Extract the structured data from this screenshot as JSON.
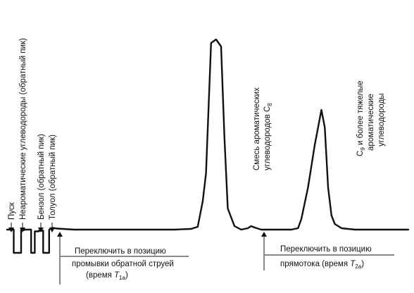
{
  "chart_data": {
    "type": "line",
    "x_label": "",
    "y_label": "",
    "grid": false,
    "legend": "none",
    "series": [
      {
        "points": [
          [
            0,
            0
          ],
          [
            2,
            0
          ],
          [
            2,
            -33
          ],
          [
            4.2,
            -33
          ],
          [
            4.2,
            -0.5
          ],
          [
            5.2,
            -0.5
          ],
          [
            5.2,
            0
          ],
          [
            7.2,
            0
          ],
          [
            7.2,
            -33
          ],
          [
            8.3,
            -33
          ],
          [
            8.3,
            -2.5
          ],
          [
            9.5,
            -2.5
          ],
          [
            9.5,
            -1.5
          ],
          [
            10.8,
            -1.5
          ],
          [
            10.8,
            -33
          ],
          [
            12.6,
            -33
          ],
          [
            12.6,
            0
          ],
          [
            13.5,
            2.5
          ],
          [
            15,
            1.5
          ],
          [
            20,
            0
          ],
          [
            50,
            0
          ],
          [
            55,
            1
          ],
          [
            57,
            4
          ],
          [
            58.5,
            40
          ],
          [
            59.5,
            80
          ],
          [
            61,
            265
          ],
          [
            62.5,
            270
          ],
          [
            64,
            260
          ],
          [
            65,
            130
          ],
          [
            66,
            30
          ],
          [
            68,
            5
          ],
          [
            70,
            0
          ],
          [
            72,
            2
          ],
          [
            73,
            5
          ],
          [
            74,
            3
          ],
          [
            76,
            0
          ],
          [
            85,
            0
          ],
          [
            87,
            2
          ],
          [
            88,
            15
          ],
          [
            90,
            60
          ],
          [
            92,
            120
          ],
          [
            94,
            170
          ],
          [
            95,
            145
          ],
          [
            96,
            60
          ],
          [
            97,
            20
          ],
          [
            98,
            8
          ],
          [
            100,
            2
          ],
          [
            104,
            0
          ],
          [
            120,
            0
          ]
        ]
      }
    ],
    "peak_labels": [
      {
        "text": "Пуск"
      },
      {
        "text": "Неароматические углеводороды (обратный пик)"
      },
      {
        "text": "Бензол (обратный пик)"
      },
      {
        "text": "Толуол (обратный пик)"
      },
      {
        "line1": "Смесь ароматических",
        "line2": "углеводородов С",
        "sub": "8"
      },
      {
        "line1_main": "С",
        "line1_sub": "9",
        "line1_rest": " и более тяжелые",
        "line2": "ароматические",
        "line3": "углеводороды"
      }
    ],
    "annotations": [
      {
        "line1": "Переключить в позицию",
        "line2": "промывки обратной струей",
        "line3_pre": "(время ",
        "line3_var": "Т",
        "line3_sub": "1а",
        "line3_post": ")"
      },
      {
        "line1": "Переключить в позицию",
        "line2_pre": "прямотока (время ",
        "line2_var": "Т",
        "line2_sub": "2а",
        "line2_post": ")"
      }
    ]
  }
}
